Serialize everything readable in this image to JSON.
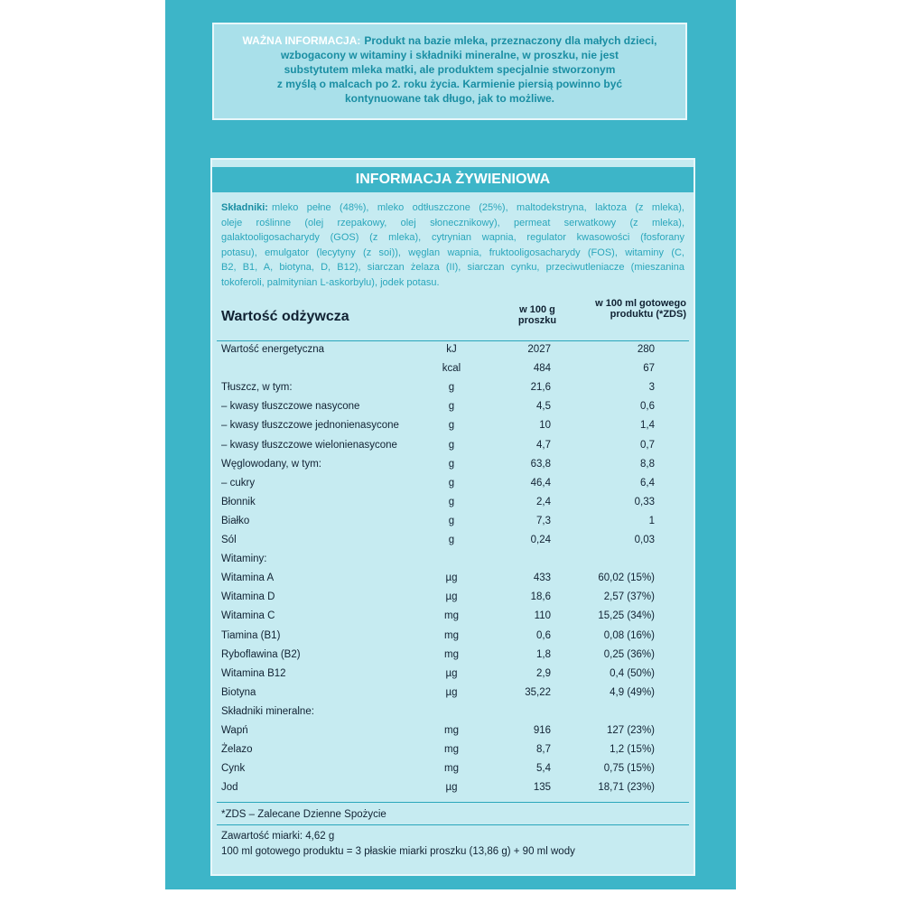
{
  "warning": {
    "label": "WAŻNA INFORMACJA:",
    "lines": [
      "Produkt na bazie mleka, przeznaczony dla małych dzieci,",
      "wzbogacony w witaminy i składniki mineralne, w proszku, nie jest",
      "substytutem mleka matki, ale produktem specjalnie stworzonym",
      "z myślą o malcach po 2. roku życia. Karmienie piersią powinno być",
      "kontynuowane tak długo, jak to możliwe."
    ]
  },
  "title": "INFORMACJA ŻYWIENIOWA",
  "ingredients": {
    "label": "Składniki:",
    "lines": [
      "mleko pełne (48%), mleko odtłuszczone (25%), maltodekstryna, laktoza (z mleka),",
      "oleje roślinne (olej rzepakowy, olej słonecznikowy), permeat serwatkowy (z mleka),",
      "galaktooligosacharydy (GOS) (z mleka), cytrynian wapnia, regulator kwasowości (fosforany",
      "potasu), emulgator (lecytyny (z soi)), węglan wapnia, fruktooligosacharydy (FOS), witaminy (C,",
      "B2, B1, A, biotyna, D, B12), siarczan żelaza (II), siarczan cynku, przeciwutleniacze (mieszanina",
      "tokoferoli, palmitynian L-askorbylu), jodek potasu."
    ]
  },
  "table": {
    "title": "Wartość odżywcza",
    "col_100g": "w 100 g proszku",
    "col_100ml": "w 100 ml gotowego produktu (*ZDS)",
    "rows": [
      {
        "name": "Wartość energetyczna",
        "unit": "kJ",
        "per_100g": "2027",
        "per_100ml": "280"
      },
      {
        "unit": "kcal",
        "per_100g": "484",
        "per_100ml": "67"
      },
      {
        "name": "Tłuszcz, w tym:",
        "unit": "g",
        "per_100g": "21,6",
        "per_100ml": "3"
      },
      {
        "name": "– kwasy tłuszczowe nasycone",
        "unit": "g",
        "per_100g": "4,5",
        "per_100ml": "0,6"
      },
      {
        "name": "– kwasy tłuszczowe jednonienasycone",
        "unit": "g",
        "per_100g": "10",
        "per_100ml": "1,4"
      },
      {
        "name": "– kwasy tłuszczowe wielonienasycone",
        "unit": "g",
        "per_100g": "4,7",
        "per_100ml": "0,7"
      },
      {
        "name": "Węglowodany, w tym:",
        "unit": "g",
        "per_100g": "63,8",
        "per_100ml": "8,8"
      },
      {
        "name": "– cukry",
        "unit": "g",
        "per_100g": "46,4",
        "per_100ml": "6,4"
      },
      {
        "name": "Błonnik",
        "unit": "g",
        "per_100g": "2,4",
        "per_100ml": "0,33"
      },
      {
        "name": "Białko",
        "unit": "g",
        "per_100g": "7,3",
        "per_100ml": "1"
      },
      {
        "name": "Sól",
        "unit": "g",
        "per_100g": "0,24",
        "per_100ml": "0,03"
      },
      {
        "name": "Witaminy:"
      },
      {
        "name": "Witamina A",
        "unit": "µg",
        "per_100g": "433",
        "per_100ml": "60,02 (15%)"
      },
      {
        "name": "Witamina D",
        "unit": "µg",
        "per_100g": "18,6",
        "per_100ml": "2,57 (37%)"
      },
      {
        "name": "Witamina C",
        "unit": "mg",
        "per_100g": "110",
        "per_100ml": "15,25 (34%)"
      },
      {
        "name": "Tiamina (B1)",
        "unit": "mg",
        "per_100g": "0,6",
        "per_100ml": "0,08 (16%)"
      },
      {
        "name": "Ryboflawina (B2)",
        "unit": "mg",
        "per_100g": "1,8",
        "per_100ml": "0,25 (36%)"
      },
      {
        "name": "Witamina B12",
        "unit": "µg",
        "per_100g": "2,9",
        "per_100ml": "0,4 (50%)"
      },
      {
        "name": "Biotyna",
        "unit": "µg",
        "per_100g": "35,22",
        "per_100ml": "4,9 (49%)"
      },
      {
        "name": "Składniki mineralne:"
      },
      {
        "name": "Wapń",
        "unit": "mg",
        "per_100g": "916",
        "per_100ml": "127 (23%)"
      },
      {
        "name": "Żelazo",
        "unit": "mg",
        "per_100g": "8,7",
        "per_100ml": "1,2 (15%)"
      },
      {
        "name": "Cynk",
        "unit": "mg",
        "per_100g": "5,4",
        "per_100ml": "0,75 (15%)"
      },
      {
        "name": "Jod",
        "unit": "µg",
        "per_100g": "135",
        "per_100ml": "18,71 (23%)"
      }
    ]
  },
  "footnote": "*ZDS – Zalecane Dzienne Spożycie",
  "notes": [
    "Zawartość miarki: 4,62 g",
    "100 ml gotowego produktu = 3 płaskie miarki proszku (13,86 g) + 90 ml wody"
  ]
}
